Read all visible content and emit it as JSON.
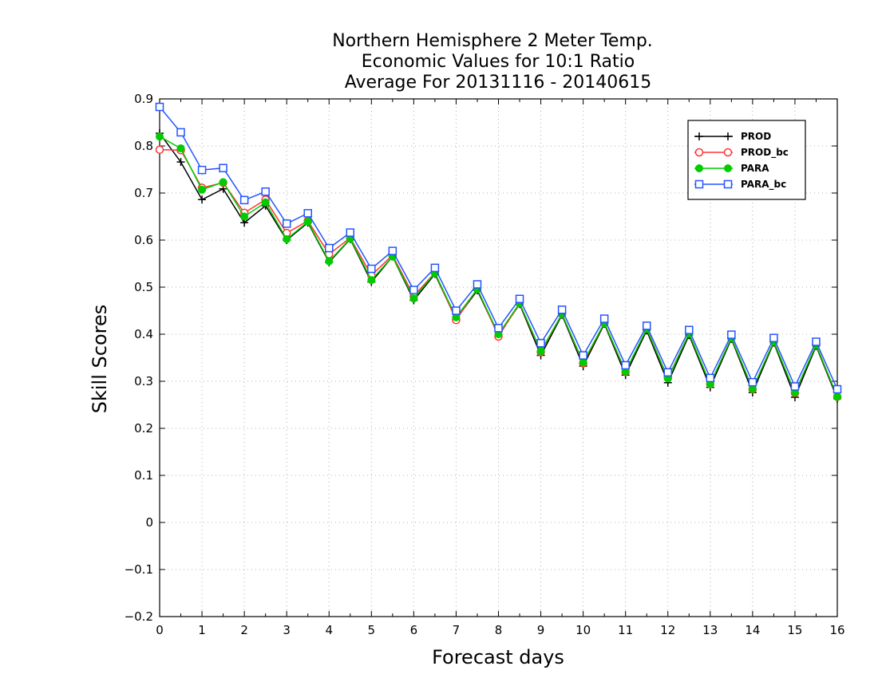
{
  "chart_data": {
    "type": "line",
    "title": [
      "Northern Hemisphere 2 Meter Temp.",
      "Economic Values for 10:1 Ratio",
      "Average For 20131116 - 20140615"
    ],
    "xlabel": "Forecast days",
    "ylabel": "Skill Scores",
    "xlim": [
      0,
      16
    ],
    "ylim": [
      -0.2,
      0.9
    ],
    "xticks": [
      0,
      1,
      2,
      3,
      4,
      5,
      6,
      7,
      8,
      9,
      10,
      11,
      12,
      13,
      14,
      15,
      16
    ],
    "yticks": [
      -0.2,
      -0.1,
      0,
      0.1,
      0.2,
      0.3,
      0.4,
      0.5,
      0.6,
      0.7,
      0.8,
      0.9
    ],
    "ytick_labels": [
      "−0.2",
      "−0.1",
      "0",
      "0.1",
      "0.2",
      "0.3",
      "0.4",
      "0.5",
      "0.6",
      "0.7",
      "0.8",
      "0.9"
    ],
    "grid": true,
    "legend_position": "top-right",
    "x": [
      0,
      0.5,
      1,
      1.5,
      2,
      2.5,
      3,
      3.5,
      4,
      4.5,
      5,
      5.5,
      6,
      6.5,
      7,
      7.5,
      8,
      8.5,
      9,
      9.5,
      10,
      10.5,
      11,
      11.5,
      12,
      12.5,
      13,
      13.5,
      14,
      14.5,
      15,
      15.5,
      16
    ],
    "series": [
      {
        "name": "PROD",
        "color": "#000000",
        "marker": "plus",
        "values": [
          0.827,
          0.766,
          0.686,
          0.709,
          0.637,
          0.673,
          0.6,
          0.637,
          0.553,
          0.602,
          0.511,
          0.565,
          0.472,
          0.528,
          0.432,
          0.493,
          0.398,
          0.464,
          0.355,
          0.441,
          0.332,
          0.422,
          0.313,
          0.408,
          0.297,
          0.398,
          0.287,
          0.39,
          0.276,
          0.382,
          0.266,
          0.375,
          0.263
        ]
      },
      {
        "name": "PROD_bc",
        "color": "#ff3333",
        "marker": "circle-open",
        "values": [
          0.792,
          0.791,
          0.711,
          0.722,
          0.658,
          0.686,
          0.615,
          0.641,
          0.57,
          0.605,
          0.525,
          0.568,
          0.481,
          0.531,
          0.43,
          0.497,
          0.395,
          0.466,
          0.362,
          0.443,
          0.338,
          0.424,
          0.32,
          0.412,
          0.307,
          0.402,
          0.294,
          0.393,
          0.283,
          0.385,
          0.275,
          0.378,
          0.267
        ]
      },
      {
        "name": "PARA",
        "color": "#00cc00",
        "marker": "circle-filled",
        "values": [
          0.82,
          0.795,
          0.707,
          0.723,
          0.65,
          0.68,
          0.602,
          0.639,
          0.555,
          0.603,
          0.515,
          0.565,
          0.476,
          0.53,
          0.436,
          0.496,
          0.4,
          0.466,
          0.364,
          0.443,
          0.34,
          0.424,
          0.321,
          0.411,
          0.306,
          0.401,
          0.294,
          0.392,
          0.284,
          0.384,
          0.276,
          0.377,
          0.267
        ]
      },
      {
        "name": "PARA_bc",
        "color": "#2255ff",
        "marker": "square-open",
        "values": [
          0.883,
          0.829,
          0.749,
          0.753,
          0.685,
          0.703,
          0.635,
          0.657,
          0.583,
          0.616,
          0.539,
          0.577,
          0.494,
          0.541,
          0.45,
          0.506,
          0.413,
          0.475,
          0.381,
          0.452,
          0.355,
          0.433,
          0.334,
          0.418,
          0.319,
          0.409,
          0.307,
          0.399,
          0.298,
          0.392,
          0.289,
          0.384,
          0.283
        ]
      }
    ]
  }
}
